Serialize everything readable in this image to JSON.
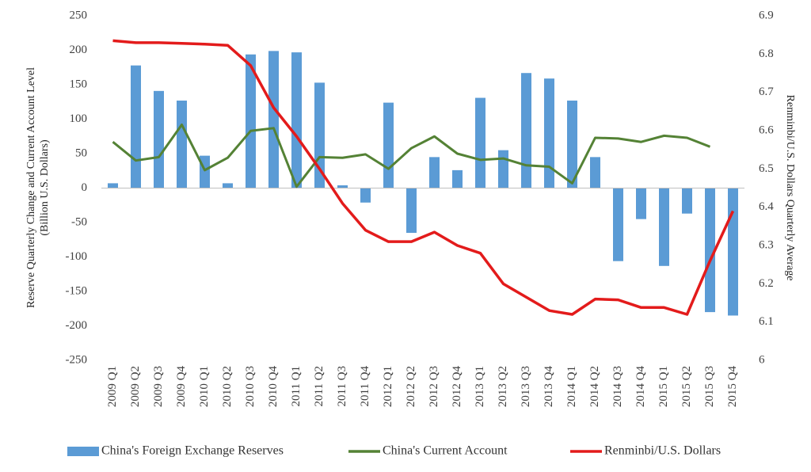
{
  "chart_data": {
    "type": "bar-line",
    "categories": [
      "2009 Q1",
      "2009 Q2",
      "2009 Q3",
      "2009 Q4",
      "2010 Q1",
      "2010 Q2",
      "2010 Q3",
      "2010 Q4",
      "2011 Q1",
      "2011 Q2",
      "2011 Q3",
      "2011 Q4",
      "2012 Q1",
      "2012 Q2",
      "2012 Q3",
      "2012 Q4",
      "2013 Q1",
      "2013 Q2",
      "2013 Q3",
      "2013 Q4",
      "2014 Q1",
      "2014 Q2",
      "2014 Q3",
      "2014 Q4",
      "2015 Q1",
      "2015 Q2",
      "2015 Q3",
      "2015 Q4"
    ],
    "series": [
      {
        "name": "China's Foreign Exchange Reserves",
        "type": "bar",
        "color": "#5b9bd5",
        "values": [
          7,
          178,
          141,
          127,
          47,
          7,
          194,
          199,
          197,
          153,
          4,
          -21,
          124,
          -65,
          45,
          26,
          131,
          55,
          167,
          159,
          127,
          45,
          -106,
          -45,
          -113,
          -37,
          -180,
          -185
        ]
      },
      {
        "name": "China's Current Account",
        "type": "line",
        "color": "#548235",
        "values": [
          67,
          40,
          45,
          92,
          26,
          44,
          83,
          87,
          2,
          45,
          44,
          49,
          28,
          58,
          75,
          50,
          41,
          43,
          33,
          31,
          7,
          73,
          72,
          67,
          76,
          73,
          60,
          null
        ]
      },
      {
        "name": "Renminbi/U.S. Dollars",
        "type": "line",
        "axis": "y2",
        "color": "#e31b1b",
        "values": [
          6.835,
          6.83,
          6.83,
          6.828,
          6.826,
          6.823,
          6.77,
          6.66,
          6.585,
          6.5,
          6.41,
          6.34,
          6.31,
          6.31,
          6.335,
          6.3,
          6.28,
          6.2,
          6.165,
          6.13,
          6.12,
          6.16,
          6.158,
          6.138,
          6.138,
          6.12,
          6.26,
          6.39
        ]
      }
    ],
    "ylabel": [
      "Reserve Quarterly Change and Current Account Level",
      "(Billion U.S. Dollars)"
    ],
    "y2label": "Renminbi/U.S. Dollars Quarterly Average",
    "ylim": [
      -250,
      250
    ],
    "yticks": [
      -250,
      -200,
      -150,
      -100,
      -50,
      0,
      50,
      100,
      150,
      200,
      250
    ],
    "y2lim": [
      6,
      6.9
    ],
    "y2ticks": [
      6,
      6.1,
      6.2,
      6.3,
      6.4,
      6.5,
      6.6,
      6.7,
      6.8,
      6.9
    ],
    "legend": "bottom"
  }
}
